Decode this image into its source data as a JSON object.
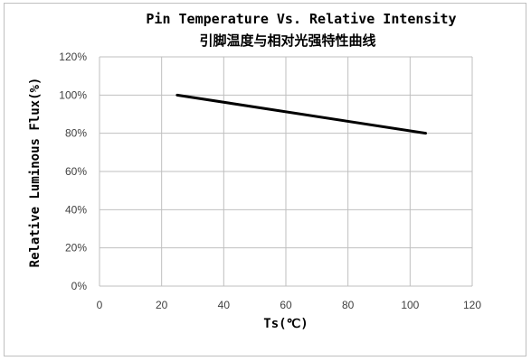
{
  "chart_data": {
    "type": "line",
    "title": "Pin Temperature Vs. Relative Intensity",
    "subtitle": "引脚温度与相对光强特性曲线",
    "xlabel": "Ts(℃)",
    "ylabel": "Relative Luminous Flux(%)",
    "xlim": [
      0,
      120
    ],
    "ylim": [
      0,
      120
    ],
    "x_ticks": [
      "0",
      "20",
      "40",
      "60",
      "80",
      "100",
      "120"
    ],
    "y_ticks": [
      "0%",
      "20%",
      "40%",
      "60%",
      "80%",
      "100%",
      "120%"
    ],
    "grid": true,
    "legend": "none",
    "line_color": "#000000",
    "series": [
      {
        "x": [
          25,
          105
        ],
        "values": [
          100,
          80
        ]
      }
    ]
  }
}
